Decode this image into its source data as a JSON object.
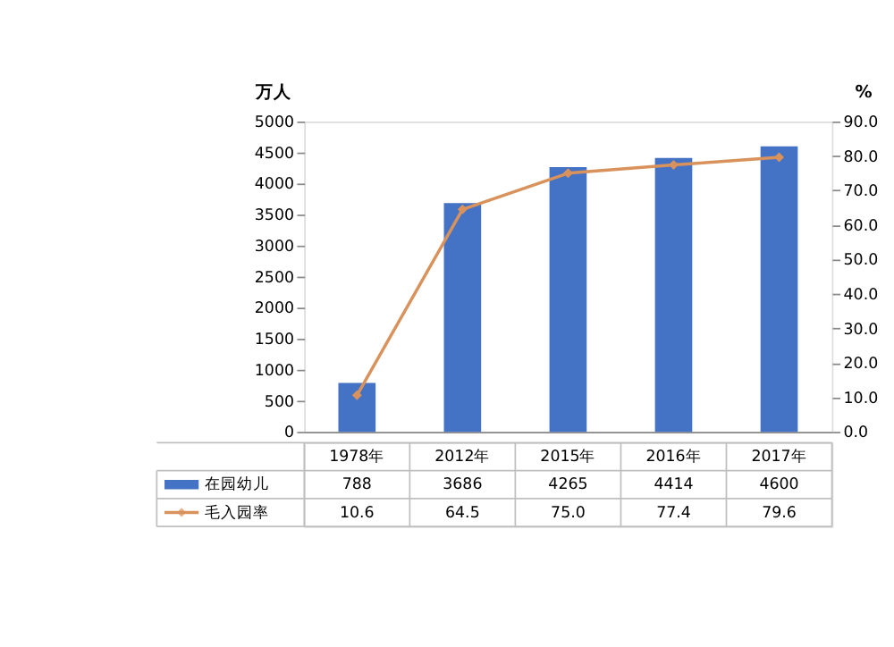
{
  "chart_data": {
    "type": "bar",
    "categories": [
      "1978年",
      "2012年",
      "2015年",
      "2016年",
      "2017年"
    ],
    "ylabel": "万人",
    "y2label": "%",
    "ylim": [
      0,
      5000
    ],
    "yticks": [
      0,
      500,
      1000,
      1500,
      2000,
      2500,
      3000,
      3500,
      4000,
      4500,
      5000
    ],
    "y2lim": [
      0,
      90
    ],
    "y2ticks": [
      {
        "value": 0,
        "label": "0.0"
      },
      {
        "value": 10,
        "label": "10.0"
      },
      {
        "value": 20,
        "label": "20.0"
      },
      {
        "value": 30,
        "label": "30.0"
      },
      {
        "value": 40,
        "label": "40.0"
      },
      {
        "value": 50,
        "label": "50.0"
      },
      {
        "value": 60,
        "label": "60.0"
      },
      {
        "value": 70,
        "label": "70.0"
      },
      {
        "value": 80,
        "label": "80.0"
      },
      {
        "value": 90,
        "label": "90.0"
      }
    ],
    "series": [
      {
        "name": "在园幼儿",
        "color": "#4472c4",
        "values": [
          788,
          3686,
          4265,
          4414,
          4600
        ]
      },
      {
        "name": "毛入园率",
        "type": "line",
        "axis": "y2",
        "color": "#d9925b",
        "marker": "diamond",
        "values": [
          10.6,
          64.5,
          75.0,
          77.4,
          79.6
        ],
        "value_labels": [
          "10.6",
          "64.5",
          "75.0",
          "77.4",
          "79.6"
        ]
      }
    ],
    "data_labels": true,
    "legend": "bottom left",
    "grid": false
  }
}
